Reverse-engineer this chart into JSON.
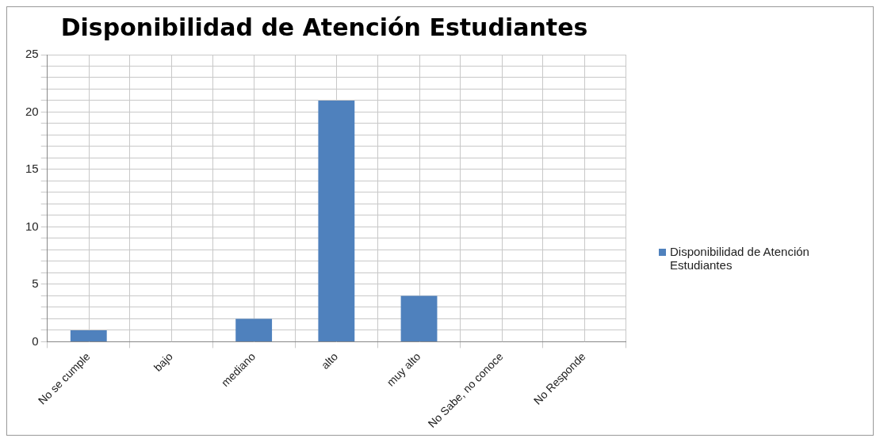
{
  "chart_data": {
    "type": "bar",
    "title": "Disponibilidad de Atención Estudiantes",
    "categories": [
      "No se cumple",
      "bajo",
      "mediano",
      "alto",
      "muy alto",
      "No Sabe, no conoce",
      "No Responde"
    ],
    "series": [
      {
        "name": "Disponibilidad de Atención Estudiantes",
        "color": "#4f81bd",
        "values": [
          1,
          0,
          2,
          21,
          4,
          0,
          0
        ]
      }
    ],
    "ylim": [
      0,
      25
    ],
    "yticks": [
      0,
      {
        "value": 1,
        "label": null
      },
      {
        "value": 2,
        "label": null
      },
      {
        "value": 3,
        "label": null
      },
      {
        "value": 4,
        "label": null
      },
      5,
      {
        "value": 6,
        "label": null
      },
      {
        "value": 7,
        "label": null
      },
      {
        "value": 8,
        "label": null
      },
      {
        "value": 9,
        "label": null
      },
      10,
      {
        "value": 11,
        "label": null
      },
      {
        "value": 12,
        "label": null
      },
      {
        "value": 13,
        "label": null
      },
      {
        "value": 14,
        "label": null
      },
      15,
      {
        "value": 16,
        "label": null
      },
      {
        "value": 17,
        "label": null
      },
      {
        "value": 18,
        "label": null
      },
      {
        "value": 19,
        "label": null
      },
      20,
      {
        "value": 21,
        "label": null
      },
      {
        "value": 22,
        "label": null
      },
      {
        "value": 23,
        "label": null
      },
      {
        "value": 24,
        "label": null
      },
      25
    ],
    "grid": true,
    "legend": "right"
  }
}
